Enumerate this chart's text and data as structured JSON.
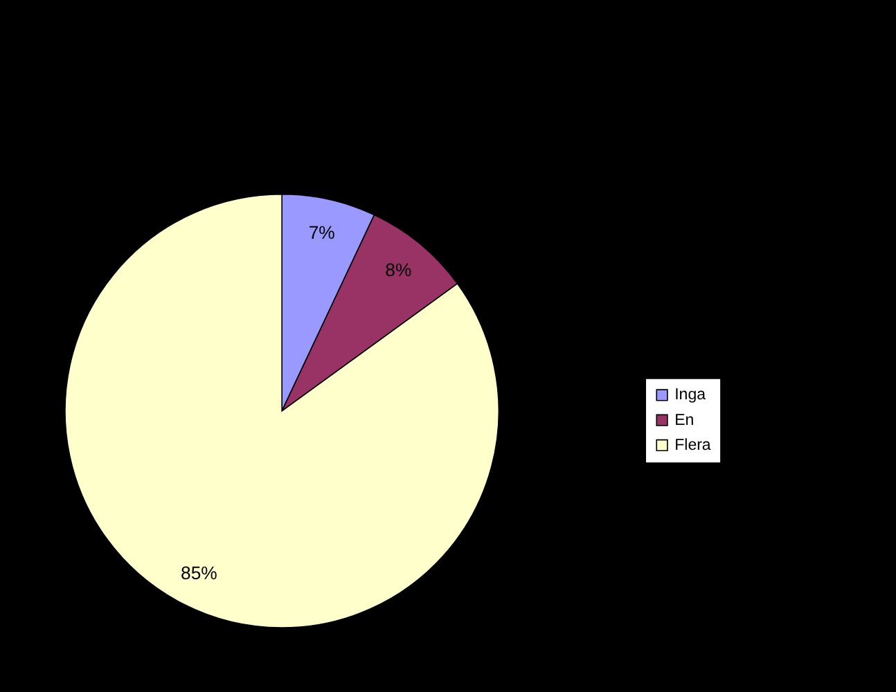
{
  "chart_data": {
    "type": "pie",
    "categories": [
      "Inga",
      "En",
      "Flera"
    ],
    "values": [
      7,
      8,
      85
    ],
    "colors": [
      "#9999ff",
      "#993366",
      "#ffffcc"
    ],
    "value_labels": [
      "7%",
      "8%",
      "85%"
    ],
    "legend": "right"
  }
}
